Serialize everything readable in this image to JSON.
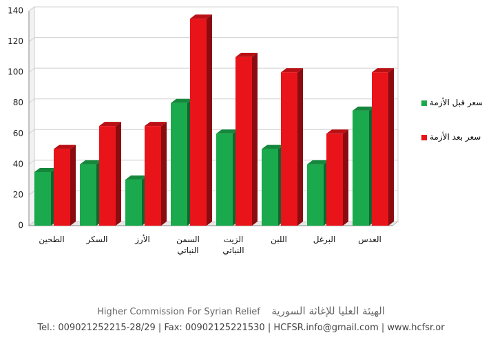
{
  "chart_data": {
    "type": "bar3d",
    "categories": [
      "الطحين",
      "السكر",
      "الأرز",
      "السمن النباتي",
      "الزيت النباتي",
      "اللبن",
      "البرغل",
      "العدس"
    ],
    "series": [
      {
        "name": "سعر قبل الأزمة",
        "color": "#1aa94c",
        "values": [
          35,
          40,
          30,
          80,
          60,
          50,
          40,
          75
        ]
      },
      {
        "name": "سعر بعد الأزمة",
        "color": "#e8141a",
        "values": [
          50,
          65,
          65,
          135,
          110,
          100,
          60,
          100
        ]
      }
    ],
    "ylim": [
      0,
      140
    ],
    "yticks": [
      0,
      20,
      40,
      60,
      80,
      100,
      120,
      140
    ],
    "grid": true
  },
  "footer": {
    "org_en": "Higher Commission For Syrian Relief",
    "org_ar": "الهيئة العليا للإغاثة السورية",
    "contact": "Tel.: 009021252215-28/29   |   Fax: 00902125221530   |   HCFSR.info@gmail.com   |   www.hcfsr.or"
  }
}
